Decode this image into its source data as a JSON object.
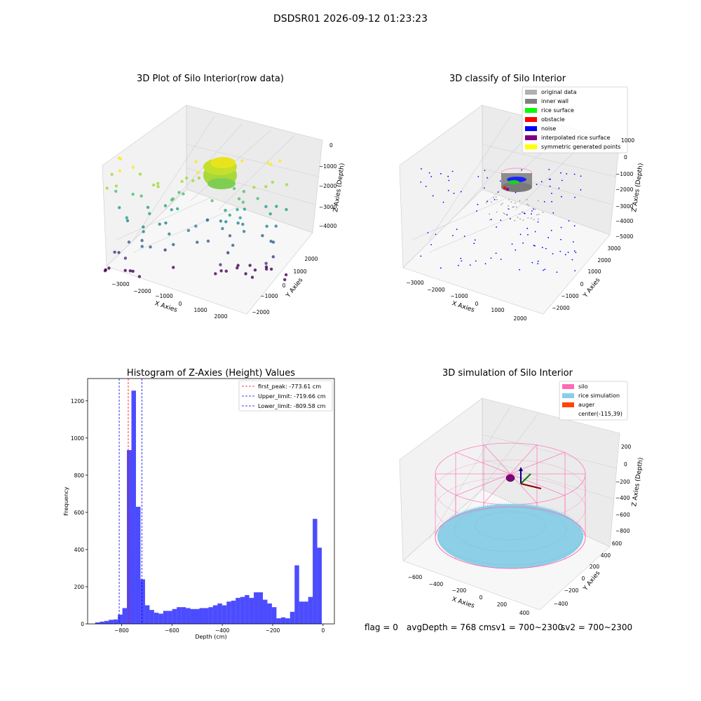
{
  "suptitle": "DSDSR01 2026-09-12 01:23:23",
  "chart_data": [
    {
      "type": "scatter",
      "title": "3D Plot of Silo Interior(row data)",
      "xlabel": "X Axies",
      "ylabel": "Y Axies",
      "zlabel": "Z Axies (Depth)",
      "x_ticks": [
        "−3000",
        "−2000",
        "−1000",
        "0",
        "1000",
        "2000"
      ],
      "y_ticks": [
        "−2000",
        "−1000",
        "0",
        "1000",
        "2000"
      ],
      "z_ticks": [
        "0",
        "−1000",
        "−2000",
        "−3000",
        "−4000"
      ],
      "xlim": [
        -3500,
        2500
      ],
      "ylim": [
        -2300,
        2300
      ],
      "zlim": [
        -4500,
        200
      ],
      "grid": true,
      "colormap": "viridis"
    },
    {
      "type": "scatter",
      "title": "3D classify of Silo Interior",
      "xlabel": "X Axies",
      "ylabel": "Y Axies",
      "zlabel": "Z Axies (Depth)",
      "x_ticks": [
        "−3000",
        "−2000",
        "−1000",
        "0",
        "1000",
        "2000"
      ],
      "y_ticks": [
        "−2000",
        "−1000",
        "0",
        "1000",
        "2000",
        "3000"
      ],
      "z_ticks": [
        "1000",
        "0",
        "−1000",
        "−2000",
        "−3000",
        "−4000",
        "−5000"
      ],
      "xlim": [
        -3500,
        2500
      ],
      "ylim": [
        -2500,
        3200
      ],
      "zlim": [
        -5000,
        1000
      ],
      "grid": true,
      "legend_position": "top-right",
      "legend": [
        {
          "label": "original data",
          "color": "#b0b0b0"
        },
        {
          "label": "inner wall",
          "color": "#808080"
        },
        {
          "label": "rice surface",
          "color": "#00ff00"
        },
        {
          "label": "obstacle",
          "color": "#ff0000"
        },
        {
          "label": "noise",
          "color": "#0000ff"
        },
        {
          "label": "interpolated rice surface",
          "color": "#800080"
        },
        {
          "label": "symmetric generated points",
          "color": "#ffff00"
        }
      ]
    },
    {
      "type": "bar",
      "title": "Histogram of Z-Axies (Height) Values",
      "xlabel": "Depth (cm)",
      "ylabel": "Frequency",
      "xlim": [
        -935,
        45
      ],
      "ylim": [
        0,
        1320
      ],
      "x_ticks": [
        -800,
        -600,
        -400,
        -200,
        0
      ],
      "x_tick_labels": [
        "−800",
        "−600",
        "−400",
        "−200",
        "0"
      ],
      "y_ticks": [
        0,
        200,
        400,
        600,
        800,
        1000,
        1200
      ],
      "bar_color": "#0000ff",
      "bin_start": -905,
      "bin_width": 18,
      "values": [
        8,
        12,
        16,
        22,
        24,
        50,
        85,
        935,
        1255,
        630,
        240,
        100,
        75,
        60,
        55,
        70,
        70,
        80,
        90,
        90,
        85,
        80,
        80,
        85,
        85,
        90,
        100,
        110,
        100,
        120,
        125,
        140,
        145,
        155,
        140,
        170,
        170,
        130,
        110,
        90,
        30,
        35,
        30,
        65,
        315,
        120,
        120,
        145,
        565,
        410
      ],
      "vlines": [
        {
          "label": "first_peak: -773.61 cm",
          "x": -773.61,
          "color": "#ff0000"
        },
        {
          "label": "Upper_limit: -719.66 cm",
          "x": -719.66,
          "color": "#0000ff"
        },
        {
          "label": "Lower_limit: -809.58 cm",
          "x": -809.58,
          "color": "#0000ff"
        }
      ],
      "legend_position": "top-right"
    },
    {
      "type": "scatter",
      "title": "3D simulation of Silo Interior",
      "xlabel": "X Axies",
      "ylabel": "Y Axies",
      "zlabel": "Z Axies (Depth)",
      "x_ticks": [
        "−600",
        "−400",
        "−200",
        "0",
        "200",
        "400"
      ],
      "y_ticks": [
        "−400",
        "−200",
        "0",
        "200",
        "400",
        "600"
      ],
      "z_ticks": [
        "200",
        "0",
        "−200",
        "−400",
        "−600",
        "−800"
      ],
      "xlim": [
        -700,
        500
      ],
      "ylim": [
        -500,
        650
      ],
      "zlim": [
        -900,
        300
      ],
      "grid": true,
      "legend_position": "top-right",
      "legend": [
        {
          "label": "silo",
          "color": "#ff69b4"
        },
        {
          "label": "rice simulation",
          "color": "#87ceeb"
        },
        {
          "label": "auger",
          "color": "#ff4500"
        },
        {
          "label": "center(-115,39)",
          "color": ""
        }
      ]
    }
  ],
  "status": {
    "flag": "flag = 0",
    "avg_depth": "avgDepth = 768 cm",
    "sv1": "sv1 = 700~2300",
    "sv2": "sv2 = 700~2300"
  }
}
